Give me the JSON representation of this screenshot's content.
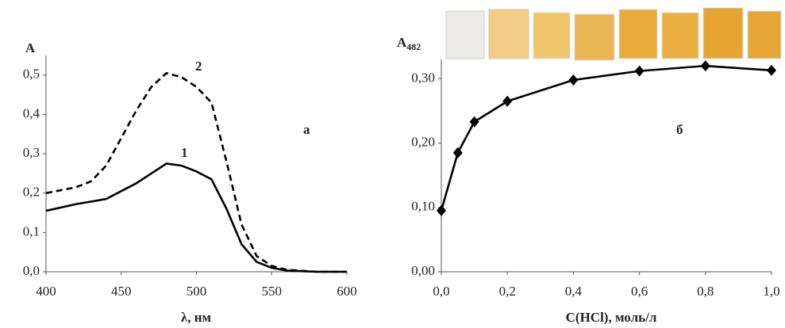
{
  "chart_data": [
    {
      "type": "line",
      "y_label": "A",
      "x_label": "λ, нм",
      "annotation": "а",
      "xlim": [
        400,
        600
      ],
      "ylim": [
        0,
        0.55
      ],
      "xticks": [
        400,
        450,
        500,
        550,
        600
      ],
      "yticks": [
        {
          "value": 0,
          "label": "0,0"
        },
        {
          "value": 0.1,
          "label": "0,1"
        },
        {
          "value": 0.2,
          "label": "0,2"
        },
        {
          "value": 0.3,
          "label": "0,3"
        },
        {
          "value": 0.4,
          "label": "0,4"
        },
        {
          "value": 0.5,
          "label": "0,5"
        }
      ],
      "series": [
        {
          "name": "1",
          "color": "#000000",
          "line_style": "solid",
          "x": [
            400,
            420,
            440,
            460,
            470,
            480,
            490,
            500,
            510,
            520,
            530,
            540,
            550,
            560,
            580,
            600
          ],
          "values": [
            0.155,
            0.172,
            0.185,
            0.225,
            0.25,
            0.275,
            0.27,
            0.255,
            0.235,
            0.16,
            0.07,
            0.025,
            0.01,
            0.003,
            0,
            0
          ]
        },
        {
          "name": "2",
          "color": "#000000",
          "line_style": "dashed",
          "x": [
            400,
            420,
            430,
            440,
            450,
            460,
            470,
            480,
            490,
            500,
            510,
            520,
            530,
            540,
            550,
            560,
            580,
            600
          ],
          "values": [
            0.2,
            0.215,
            0.23,
            0.27,
            0.34,
            0.41,
            0.47,
            0.505,
            0.495,
            0.47,
            0.43,
            0.28,
            0.12,
            0.04,
            0.015,
            0.005,
            0,
            0
          ]
        }
      ]
    },
    {
      "type": "line",
      "y_label": "A",
      "y_label_sub": "482",
      "x_label": "C(HCl), моль/л",
      "annotation": "б",
      "xlim": [
        0,
        1
      ],
      "ylim": [
        0,
        0.33
      ],
      "xticks": [
        {
          "value": 0,
          "label": "0,0"
        },
        {
          "value": 0.2,
          "label": "0,2"
        },
        {
          "value": 0.4,
          "label": "0,4"
        },
        {
          "value": 0.6,
          "label": "0,6"
        },
        {
          "value": 0.8,
          "label": "0,8"
        },
        {
          "value": 1,
          "label": "1,0"
        }
      ],
      "yticks": [
        {
          "value": 0,
          "label": "0,00"
        },
        {
          "value": 0.1,
          "label": "0,10"
        },
        {
          "value": 0.2,
          "label": "0,20"
        },
        {
          "value": 0.3,
          "label": "0,30"
        }
      ],
      "series": [
        {
          "color": "#000000",
          "line_style": "solid",
          "marker": "diamond",
          "x": [
            0,
            0.05,
            0.1,
            0.2,
            0.4,
            0.6,
            0.8,
            1
          ],
          "values": [
            0.095,
            0.185,
            0.233,
            0.265,
            0.298,
            0.312,
            0.32,
            0.313
          ]
        }
      ]
    }
  ]
}
